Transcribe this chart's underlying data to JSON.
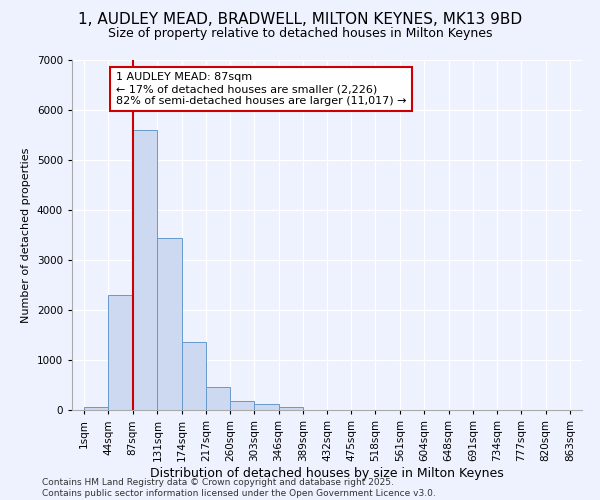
{
  "title": "1, AUDLEY MEAD, BRADWELL, MILTON KEYNES, MK13 9BD",
  "subtitle": "Size of property relative to detached houses in Milton Keynes",
  "xlabel": "Distribution of detached houses by size in Milton Keynes",
  "ylabel": "Number of detached properties",
  "bins": [
    "1sqm",
    "44sqm",
    "87sqm",
    "131sqm",
    "174sqm",
    "217sqm",
    "260sqm",
    "303sqm",
    "346sqm",
    "389sqm",
    "432sqm",
    "475sqm",
    "518sqm",
    "561sqm",
    "604sqm",
    "648sqm",
    "691sqm",
    "734sqm",
    "777sqm",
    "820sqm",
    "863sqm"
  ],
  "bin_edges": [
    1,
    44,
    87,
    131,
    174,
    217,
    260,
    303,
    346,
    389,
    432,
    475,
    518,
    561,
    604,
    648,
    691,
    734,
    777,
    820,
    863
  ],
  "values": [
    60,
    2300,
    5600,
    3450,
    1370,
    460,
    180,
    120,
    60,
    10,
    5,
    2,
    1,
    0,
    0,
    0,
    0,
    0,
    0,
    0
  ],
  "bar_color": "#ccd9f0",
  "bar_edge_color": "#6699cc",
  "vline_x": 87,
  "vline_color": "#cc0000",
  "annotation_text": "1 AUDLEY MEAD: 87sqm\n← 17% of detached houses are smaller (2,226)\n82% of semi-detached houses are larger (11,017) →",
  "annotation_box_color": "#ffffff",
  "annotation_box_edge_color": "#cc0000",
  "ylim": [
    0,
    7000
  ],
  "yticks": [
    0,
    1000,
    2000,
    3000,
    4000,
    5000,
    6000,
    7000
  ],
  "background_color": "#eef2ff",
  "footer_text": "Contains HM Land Registry data © Crown copyright and database right 2025.\nContains public sector information licensed under the Open Government Licence v3.0.",
  "title_fontsize": 11,
  "subtitle_fontsize": 9,
  "xlabel_fontsize": 9,
  "ylabel_fontsize": 8,
  "tick_fontsize": 7.5,
  "footer_fontsize": 6.5
}
